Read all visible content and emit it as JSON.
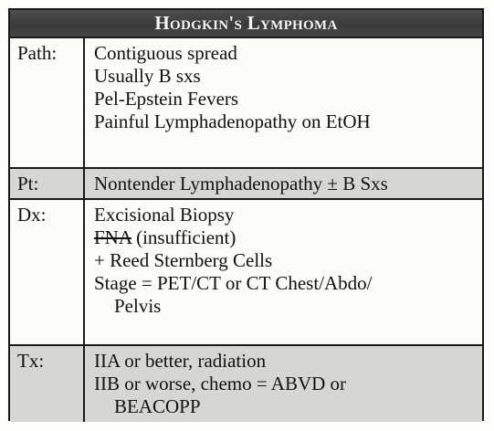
{
  "title": "Hodgkin's Lymphoma",
  "rows": [
    {
      "label": "Path:",
      "lines": [
        "Contiguous spread",
        "Usually B sxs",
        "Pel-Epstein Fevers",
        "Painful Lymphadenopathy on EtOH"
      ]
    },
    {
      "label": "Pt:",
      "lines": [
        "Nontender Lymphadenopathy ± B Sxs"
      ]
    },
    {
      "label": "Dx:",
      "lines": [
        "Excisional Biopsy",
        "FNA",
        " (insufficient)",
        "+ Reed Sternberg Cells",
        "Stage = PET/CT or CT Chest/Abdo/",
        "Pelvis"
      ]
    },
    {
      "label": "Tx:",
      "lines": [
        "IIA or better, radiation",
        "IIB or worse, chemo = ABVD or",
        "BEACOPP"
      ]
    }
  ],
  "colors": {
    "title_bar": "#3f3f3f",
    "shaded_row": "#d6d6d3",
    "border": "#1a1a1a"
  }
}
